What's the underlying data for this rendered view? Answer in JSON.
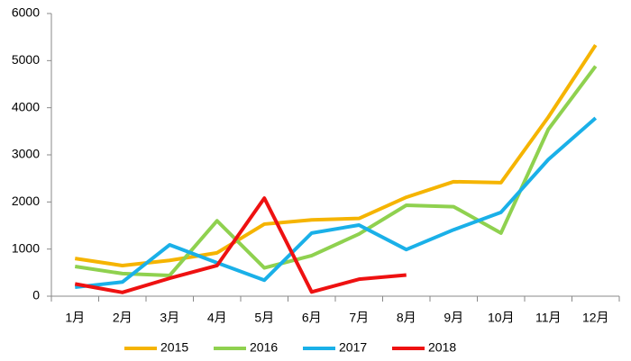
{
  "chart_data": {
    "type": "line",
    "categories": [
      "1月",
      "2月",
      "3月",
      "4月",
      "5月",
      "6月",
      "7月",
      "8月",
      "9月",
      "10月",
      "11月",
      "12月"
    ],
    "series": [
      {
        "name": "2015",
        "color": "#f5b400",
        "values": [
          800,
          650,
          760,
          920,
          1530,
          1620,
          1650,
          2100,
          2430,
          2410,
          3800,
          5330
        ]
      },
      {
        "name": "2016",
        "color": "#8fd14f",
        "values": [
          630,
          480,
          440,
          1600,
          600,
          860,
          1320,
          1930,
          1900,
          1340,
          3540,
          4880
        ]
      },
      {
        "name": "2017",
        "color": "#1ab0e8",
        "values": [
          190,
          300,
          1090,
          710,
          340,
          1340,
          1510,
          990,
          1410,
          1780,
          2900,
          3780
        ]
      },
      {
        "name": "2018",
        "color": "#ee1111",
        "values": [
          260,
          80,
          380,
          650,
          2080,
          90,
          360,
          450,
          null,
          null,
          null,
          null
        ]
      }
    ],
    "ylim": [
      0,
      6000
    ],
    "yticks": [
      0,
      1000,
      2000,
      3000,
      4000,
      5000,
      6000
    ],
    "grid": false,
    "legend": "bottom"
  }
}
